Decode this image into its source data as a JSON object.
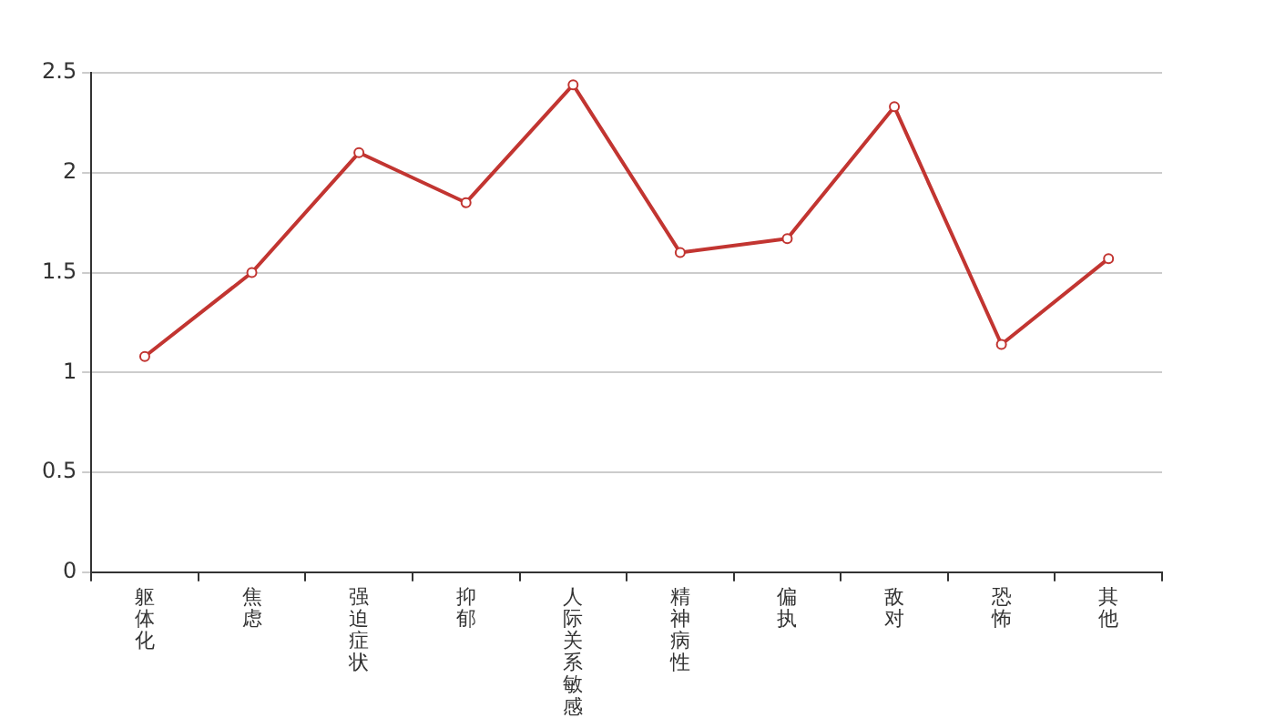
{
  "chart_data": {
    "type": "line",
    "categories": [
      "躯体化",
      "焦虑",
      "强迫症状",
      "抑郁",
      "人际关系敏感",
      "精神病性",
      "偏执",
      "敌对",
      "恐怖",
      "其他"
    ],
    "series": [
      {
        "color": "#c23531",
        "values": [
          1.08,
          1.5,
          2.1,
          1.85,
          2.44,
          1.6,
          1.67,
          2.33,
          1.14,
          1.57
        ]
      }
    ],
    "ylim": [
      0,
      2.5
    ],
    "yticks": [
      0,
      0.5,
      1,
      1.5,
      2,
      2.5
    ],
    "grid": "y",
    "legend": false,
    "marker": "circle",
    "line_style": "solid"
  }
}
